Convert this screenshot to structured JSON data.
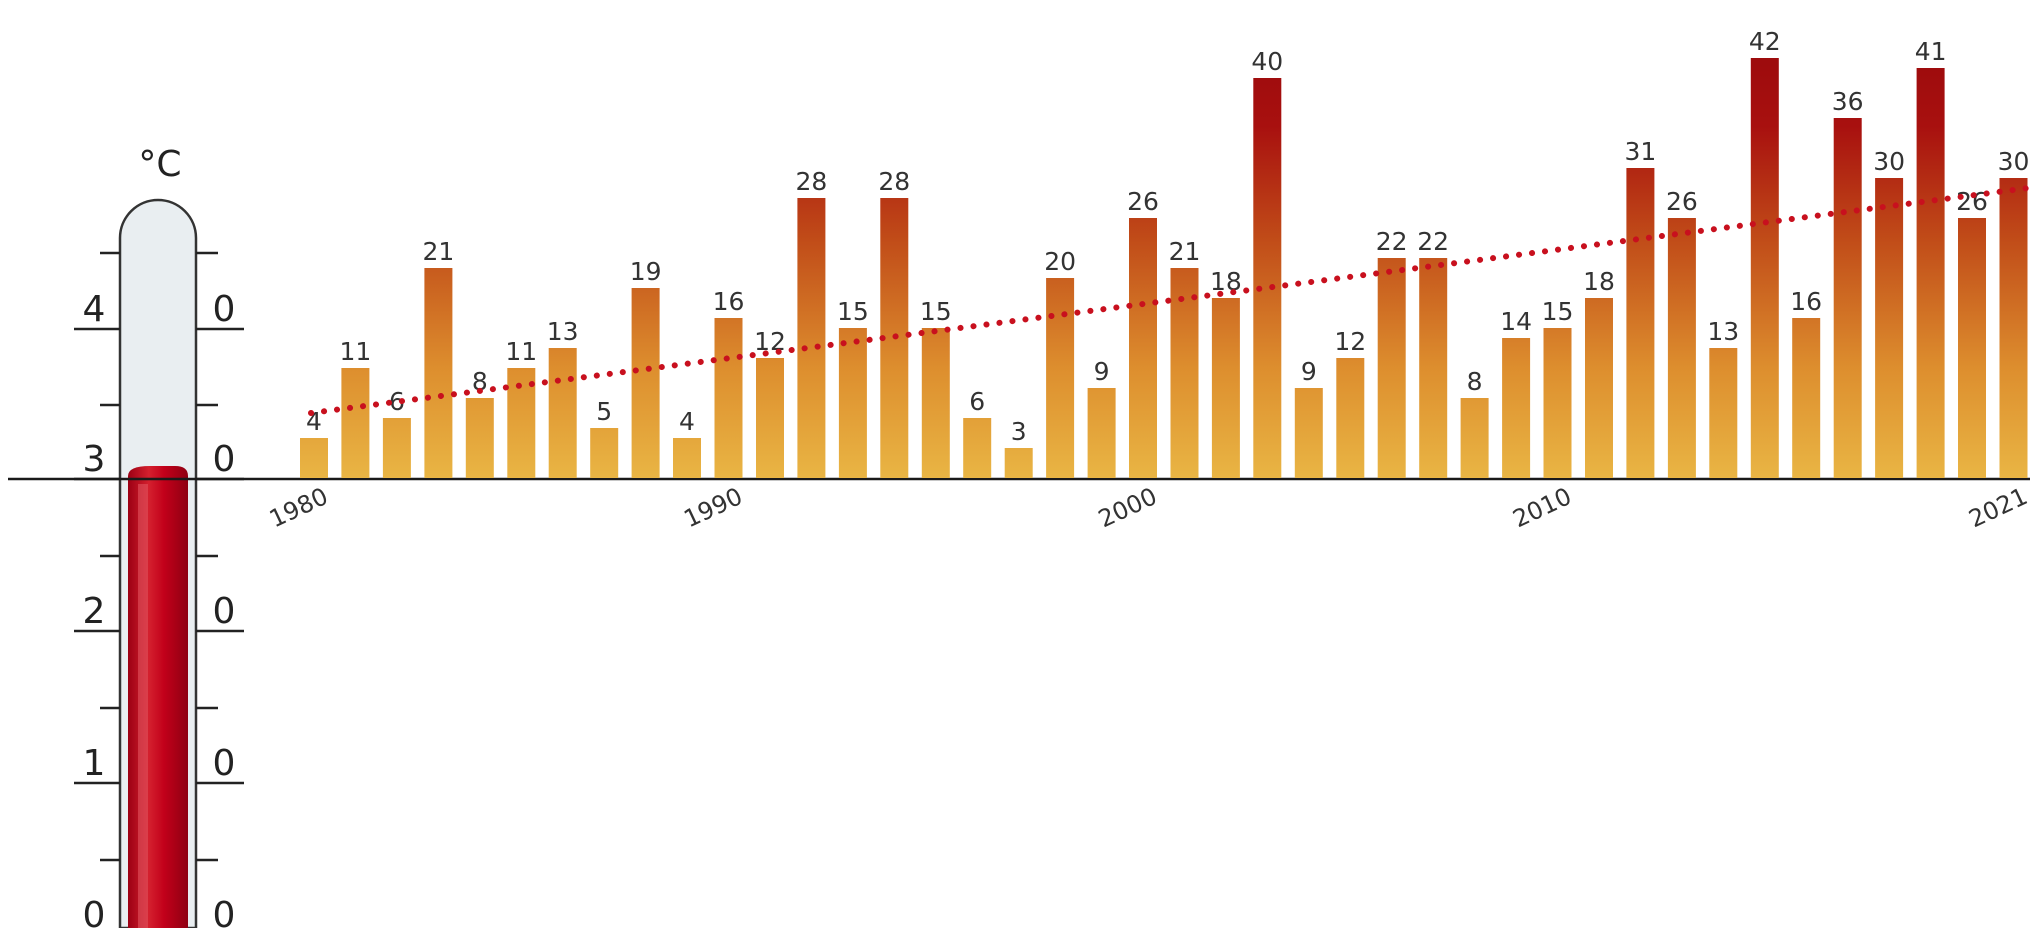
{
  "chart_data": {
    "type": "bar",
    "categories": [
      "1980",
      "1981",
      "1982",
      "1983",
      "1984",
      "1985",
      "1986",
      "1987",
      "1988",
      "1989",
      "1990",
      "1991",
      "1992",
      "1993",
      "1994",
      "1995",
      "1996",
      "1997",
      "1998",
      "1999",
      "2000",
      "2001",
      "2002",
      "2003",
      "2004",
      "2005",
      "2006",
      "2007",
      "2008",
      "2009",
      "2010",
      "2011",
      "2012",
      "2013",
      "2014",
      "2015",
      "2016",
      "2017",
      "2018",
      "2019",
      "2020",
      "2021"
    ],
    "values": [
      4,
      11,
      6,
      21,
      8,
      11,
      13,
      5,
      19,
      4,
      16,
      12,
      28,
      15,
      28,
      15,
      6,
      3,
      20,
      9,
      26,
      21,
      18,
      40,
      9,
      12,
      22,
      22,
      8,
      14,
      15,
      18,
      31,
      26,
      13,
      42,
      16,
      36,
      30,
      41,
      26,
      30
    ],
    "x_tick_labels": [
      "1980",
      "1990",
      "2000",
      "2010",
      "2021"
    ],
    "trend": {
      "start": 6.5,
      "end": 29
    },
    "ylim": [
      0,
      42
    ],
    "colors": {
      "low": "#e8b040",
      "high": "#a80c10",
      "trend": "#c8101e"
    }
  },
  "thermometer": {
    "unit": "°C",
    "left_labels": [
      "4",
      "3",
      "2",
      "1",
      "0"
    ],
    "right_labels": [
      "0",
      "0",
      "0",
      "0",
      "0"
    ],
    "mercury_color": "#c2001a",
    "glass_color": "#e8edf0"
  }
}
